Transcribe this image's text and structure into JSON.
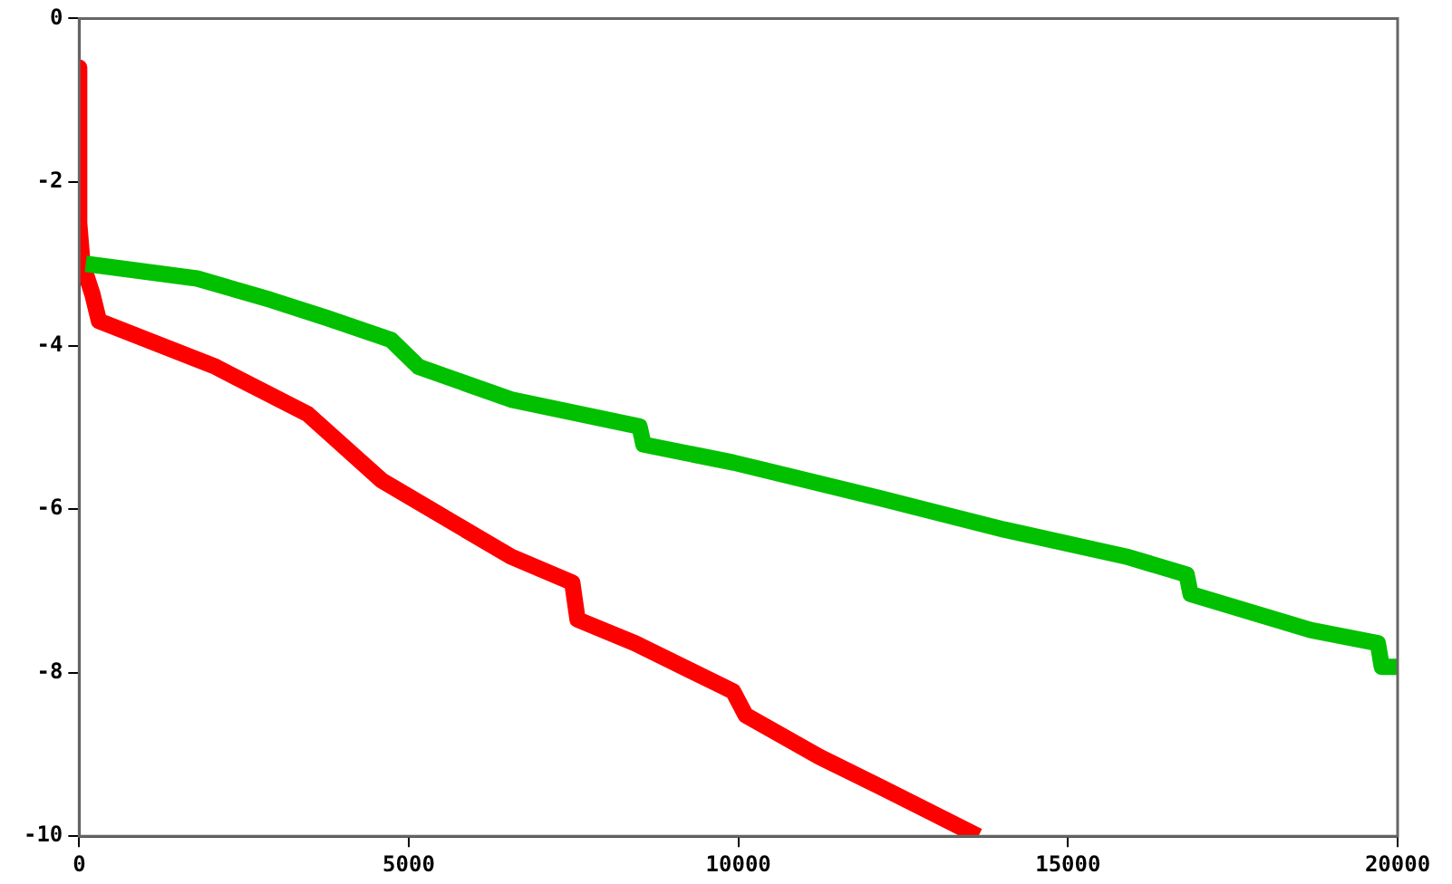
{
  "chart_data": {
    "type": "line",
    "xlim": [
      0,
      20000
    ],
    "xticks": [
      0,
      5000,
      10000,
      15000,
      20000
    ],
    "ylim": [
      -10,
      0
    ],
    "yticks": [
      0,
      -2,
      -4,
      -6,
      -8,
      -10
    ],
    "grid": false,
    "legend": false,
    "marker": "none",
    "line_style": "solid",
    "series": [
      {
        "color": "#00c000",
        "x": [
          100,
          1790,
          2900,
          3750,
          4730,
          5150,
          6550,
          8500,
          8560,
          9920,
          12160,
          14030,
          15880,
          16800,
          16860,
          18680,
          19700,
          19760,
          20000
        ],
        "values": [
          -3.0,
          -3.18,
          -3.44,
          -3.66,
          -3.93,
          -4.26,
          -4.66,
          -4.99,
          -5.21,
          -5.43,
          -5.87,
          -6.25,
          -6.58,
          -6.8,
          -7.04,
          -7.48,
          -7.64,
          -7.93,
          -7.93
        ]
      },
      {
        "color": "#ff0000",
        "x": [
          0,
          0,
          50,
          200,
          300,
          2070,
          3470,
          4590,
          5430,
          6550,
          7480,
          7560,
          8430,
          9920,
          10110,
          11230,
          12160,
          13640
        ],
        "values": [
          -0.6,
          -2.5,
          -3.0,
          -3.37,
          -3.7,
          -4.26,
          -4.84,
          -5.65,
          -6.05,
          -6.58,
          -6.9,
          -7.35,
          -7.64,
          -8.23,
          -8.52,
          -9.03,
          -9.4,
          -10.0
        ]
      }
    ]
  }
}
